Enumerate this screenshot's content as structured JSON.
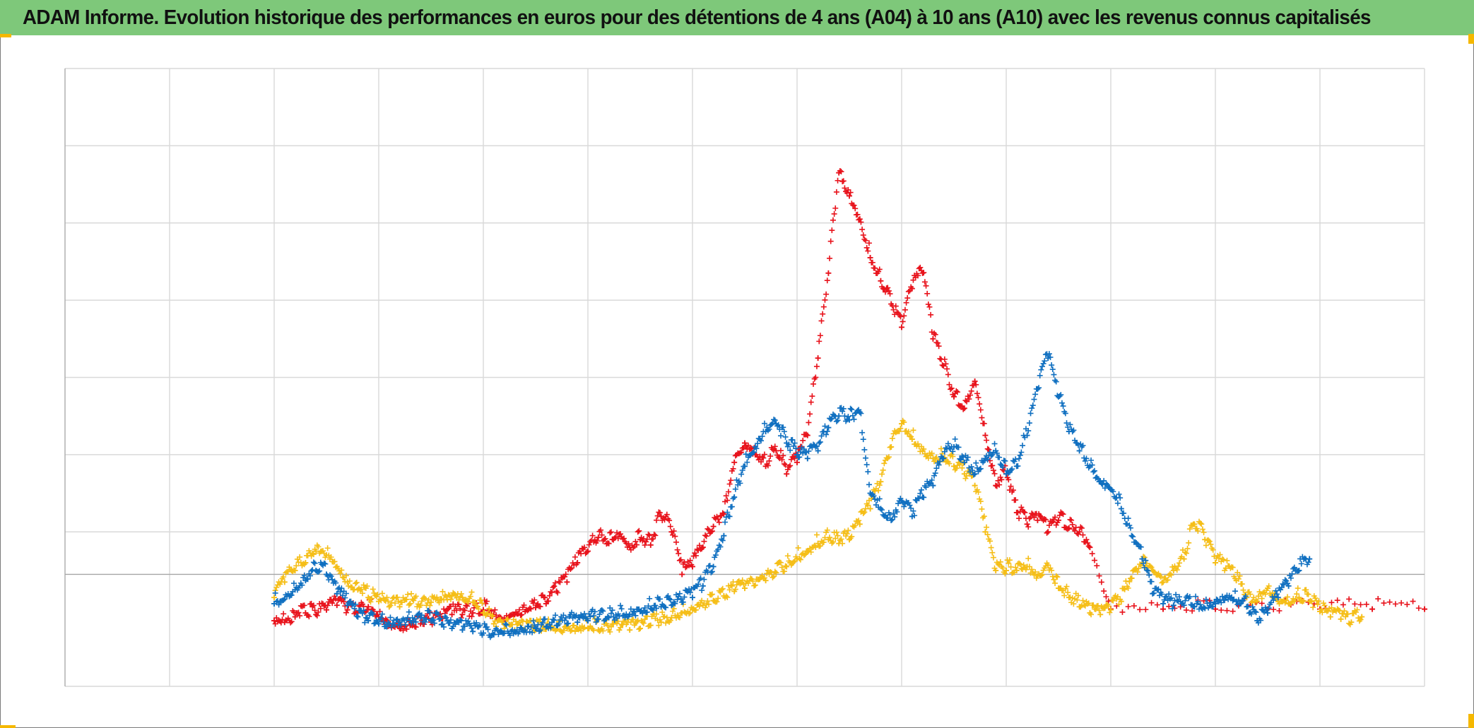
{
  "title": "ADAM Informe. Evolution historique des performances en euros pour des détentions de 4 ans (A04) à 10 ans (A10) avec les revenus connus capitalisés",
  "colors": {
    "title_bar": "#7ec87a",
    "grid": "#d9d9d9",
    "axis": "#a6a6a6",
    "corner_marks": "#f5b800"
  },
  "chart_data": {
    "type": "scatter",
    "marker": "plus",
    "title": "ADAM Informe. Evolution historique des performances en euros pour des détentions de 4 ans (A04) à 10 ans (A10) avec les revenus connus capitalisés",
    "xlabel": "",
    "ylabel": "",
    "x_tick_labels_visible": false,
    "y_tick_labels_visible": false,
    "grid": true,
    "legend": "none",
    "xlim": [
      0,
      13
    ],
    "ylim": [
      -1.45,
      6.55
    ],
    "reference_line_y": 0,
    "y_gridlines": [
      6.55,
      5.55,
      4.55,
      3.55,
      2.55,
      1.55,
      0.55
    ],
    "series": [
      {
        "color": "#e8121b",
        "points": [
          [
            2.0,
            -0.6
          ],
          [
            2.1,
            -0.62
          ],
          [
            2.2,
            -0.55
          ],
          [
            2.3,
            -0.5
          ],
          [
            2.4,
            -0.52
          ],
          [
            2.5,
            -0.46
          ],
          [
            2.6,
            -0.4
          ],
          [
            2.7,
            -0.46
          ],
          [
            2.8,
            -0.5
          ],
          [
            2.9,
            -0.42
          ],
          [
            3.0,
            -0.55
          ],
          [
            3.1,
            -0.65
          ],
          [
            3.2,
            -0.7
          ],
          [
            3.3,
            -0.66
          ],
          [
            3.4,
            -0.64
          ],
          [
            3.5,
            -0.62
          ],
          [
            3.6,
            -0.57
          ],
          [
            3.7,
            -0.52
          ],
          [
            3.8,
            -0.52
          ],
          [
            3.9,
            -0.5
          ],
          [
            4.0,
            -0.46
          ],
          [
            4.1,
            -0.52
          ],
          [
            4.2,
            -0.58
          ],
          [
            4.3,
            -0.52
          ],
          [
            4.4,
            -0.48
          ],
          [
            4.5,
            -0.43
          ],
          [
            4.6,
            -0.38
          ],
          [
            4.7,
            -0.22
          ],
          [
            4.8,
            -0.1
          ],
          [
            4.9,
            0.15
          ],
          [
            5.0,
            0.3
          ],
          [
            5.1,
            0.48
          ],
          [
            5.2,
            0.4
          ],
          [
            5.3,
            0.52
          ],
          [
            5.4,
            0.35
          ],
          [
            5.5,
            0.45
          ],
          [
            5.6,
            0.38
          ],
          [
            5.7,
            0.75
          ],
          [
            5.8,
            0.55
          ],
          [
            5.9,
            0.0
          ],
          [
            6.0,
            0.1
          ],
          [
            6.1,
            0.35
          ],
          [
            6.2,
            0.62
          ],
          [
            6.3,
            0.78
          ],
          [
            6.4,
            1.45
          ],
          [
            6.5,
            1.7
          ],
          [
            6.6,
            1.55
          ],
          [
            6.7,
            1.4
          ],
          [
            6.8,
            1.6
          ],
          [
            6.9,
            1.3
          ],
          [
            7.0,
            1.45
          ],
          [
            7.1,
            1.8
          ],
          [
            7.2,
            2.8
          ],
          [
            7.3,
            3.9
          ],
          [
            7.4,
            5.2
          ],
          [
            7.5,
            4.9
          ],
          [
            7.6,
            4.6
          ],
          [
            7.7,
            4.1
          ],
          [
            7.8,
            3.8
          ],
          [
            7.9,
            3.5
          ],
          [
            8.0,
            3.2
          ],
          [
            8.1,
            3.7
          ],
          [
            8.2,
            3.9
          ],
          [
            8.3,
            3.05
          ],
          [
            8.4,
            2.7
          ],
          [
            8.5,
            2.3
          ],
          [
            8.6,
            2.15
          ],
          [
            8.7,
            2.5
          ],
          [
            8.8,
            1.8
          ],
          [
            8.9,
            1.15
          ],
          [
            9.0,
            1.3
          ],
          [
            9.1,
            0.8
          ],
          [
            9.2,
            0.65
          ],
          [
            9.3,
            0.7
          ],
          [
            9.4,
            0.55
          ],
          [
            9.5,
            0.7
          ],
          [
            9.6,
            0.6
          ],
          [
            9.7,
            0.55
          ],
          [
            9.8,
            0.35
          ],
          [
            10.0,
            -0.45
          ],
          [
            10.5,
            -0.45
          ],
          [
            11.0,
            -0.45
          ],
          [
            11.5,
            -0.45
          ],
          [
            12.0,
            -0.45
          ],
          [
            12.5,
            -0.45
          ],
          [
            13.0,
            -0.45
          ]
        ]
      },
      {
        "color": "#f5be17",
        "points": [
          [
            2.0,
            -0.3
          ],
          [
            2.1,
            -0.1
          ],
          [
            2.2,
            0.05
          ],
          [
            2.3,
            0.15
          ],
          [
            2.4,
            0.3
          ],
          [
            2.5,
            0.25
          ],
          [
            2.6,
            0.1
          ],
          [
            2.7,
            -0.1
          ],
          [
            2.8,
            -0.2
          ],
          [
            2.9,
            -0.3
          ],
          [
            3.0,
            -0.35
          ],
          [
            3.1,
            -0.42
          ],
          [
            3.2,
            -0.42
          ],
          [
            3.3,
            -0.38
          ],
          [
            3.4,
            -0.4
          ],
          [
            3.5,
            -0.36
          ],
          [
            3.6,
            -0.32
          ],
          [
            3.7,
            -0.28
          ],
          [
            3.8,
            -0.3
          ],
          [
            3.9,
            -0.36
          ],
          [
            4.0,
            -0.5
          ],
          [
            4.1,
            -0.64
          ],
          [
            4.2,
            -0.7
          ],
          [
            4.3,
            -0.72
          ],
          [
            4.4,
            -0.72
          ],
          [
            4.5,
            -0.72
          ],
          [
            4.6,
            -0.71
          ],
          [
            4.7,
            -0.71
          ],
          [
            4.8,
            -0.7
          ],
          [
            4.9,
            -0.7
          ],
          [
            5.0,
            -0.7
          ],
          [
            5.1,
            -0.72
          ],
          [
            5.2,
            -0.72
          ],
          [
            5.3,
            -0.72
          ],
          [
            5.4,
            -0.72
          ],
          [
            5.5,
            -0.7
          ],
          [
            5.6,
            -0.66
          ],
          [
            5.7,
            -0.62
          ],
          [
            5.8,
            -0.56
          ],
          [
            5.9,
            -0.5
          ],
          [
            6.0,
            -0.45
          ],
          [
            6.1,
            -0.4
          ],
          [
            6.2,
            -0.34
          ],
          [
            6.3,
            -0.28
          ],
          [
            6.4,
            -0.22
          ],
          [
            6.5,
            -0.18
          ],
          [
            6.6,
            -0.14
          ],
          [
            6.7,
            -0.08
          ],
          [
            6.8,
            0.02
          ],
          [
            6.9,
            0.1
          ],
          [
            7.0,
            0.2
          ],
          [
            7.1,
            0.3
          ],
          [
            7.2,
            0.4
          ],
          [
            7.3,
            0.45
          ],
          [
            7.4,
            0.4
          ],
          [
            7.5,
            0.45
          ],
          [
            7.6,
            0.65
          ],
          [
            7.7,
            0.85
          ],
          [
            7.8,
            1.2
          ],
          [
            7.9,
            1.65
          ],
          [
            8.0,
            1.95
          ],
          [
            8.1,
            1.75
          ],
          [
            8.2,
            1.6
          ],
          [
            8.3,
            1.5
          ],
          [
            8.4,
            1.5
          ],
          [
            8.5,
            1.4
          ],
          [
            8.6,
            1.3
          ],
          [
            8.7,
            1.15
          ],
          [
            8.8,
            0.55
          ],
          [
            8.9,
            0.05
          ],
          [
            9.0,
            0.05
          ],
          [
            9.1,
            0.05
          ],
          [
            9.2,
            0.1
          ],
          [
            9.3,
            -0.02
          ],
          [
            9.4,
            0.12
          ],
          [
            9.5,
            -0.18
          ],
          [
            9.6,
            -0.3
          ],
          [
            9.7,
            -0.42
          ],
          [
            9.8,
            -0.5
          ],
          [
            9.9,
            -0.52
          ],
          [
            10.0,
            -0.46
          ],
          [
            10.1,
            -0.35
          ],
          [
            10.2,
            -0.05
          ],
          [
            10.3,
            0.15
          ],
          [
            10.4,
            0.05
          ],
          [
            10.5,
            -0.1
          ],
          [
            10.6,
            0.05
          ],
          [
            10.7,
            0.2
          ],
          [
            10.8,
            0.65
          ],
          [
            10.9,
            0.45
          ],
          [
            11.0,
            0.15
          ],
          [
            11.1,
            0.08
          ],
          [
            11.2,
            -0.08
          ],
          [
            11.3,
            -0.3
          ],
          [
            11.4,
            -0.35
          ],
          [
            11.5,
            -0.18
          ],
          [
            11.6,
            -0.35
          ],
          [
            11.7,
            -0.38
          ],
          [
            11.8,
            -0.3
          ],
          [
            11.9,
            -0.35
          ],
          [
            12.0,
            -0.48
          ],
          [
            12.1,
            -0.55
          ],
          [
            12.2,
            -0.58
          ],
          [
            12.3,
            -0.62
          ],
          [
            12.4,
            -0.55
          ]
        ]
      },
      {
        "color": "#0f6fc0",
        "points": [
          [
            2.0,
            -0.38
          ],
          [
            2.1,
            -0.32
          ],
          [
            2.2,
            -0.2
          ],
          [
            2.3,
            -0.08
          ],
          [
            2.4,
            0.05
          ],
          [
            2.5,
            0.0
          ],
          [
            2.6,
            -0.25
          ],
          [
            2.7,
            -0.4
          ],
          [
            2.8,
            -0.55
          ],
          [
            2.9,
            -0.6
          ],
          [
            3.0,
            -0.64
          ],
          [
            3.1,
            -0.64
          ],
          [
            3.2,
            -0.62
          ],
          [
            3.3,
            -0.6
          ],
          [
            3.4,
            -0.56
          ],
          [
            3.5,
            -0.6
          ],
          [
            3.6,
            -0.65
          ],
          [
            3.7,
            -0.7
          ],
          [
            3.8,
            -0.72
          ],
          [
            3.9,
            -0.74
          ],
          [
            4.0,
            -0.76
          ],
          [
            4.1,
            -0.78
          ],
          [
            4.2,
            -0.76
          ],
          [
            4.3,
            -0.74
          ],
          [
            4.4,
            -0.72
          ],
          [
            4.5,
            -0.7
          ],
          [
            4.6,
            -0.68
          ],
          [
            4.7,
            -0.66
          ],
          [
            4.8,
            -0.64
          ],
          [
            4.9,
            -0.62
          ],
          [
            5.0,
            -0.6
          ],
          [
            5.1,
            -0.58
          ],
          [
            5.2,
            -0.56
          ],
          [
            5.3,
            -0.54
          ],
          [
            5.4,
            -0.52
          ],
          [
            5.5,
            -0.48
          ],
          [
            5.6,
            -0.44
          ],
          [
            5.7,
            -0.42
          ],
          [
            5.8,
            -0.4
          ],
          [
            5.9,
            -0.36
          ],
          [
            6.0,
            -0.3
          ],
          [
            6.1,
            -0.15
          ],
          [
            6.2,
            0.1
          ],
          [
            6.3,
            0.5
          ],
          [
            6.4,
            1.0
          ],
          [
            6.5,
            1.4
          ],
          [
            6.6,
            1.65
          ],
          [
            6.7,
            1.85
          ],
          [
            6.8,
            1.95
          ],
          [
            6.9,
            1.7
          ],
          [
            7.0,
            1.55
          ],
          [
            7.1,
            1.5
          ],
          [
            7.2,
            1.6
          ],
          [
            7.3,
            1.9
          ],
          [
            7.4,
            2.05
          ],
          [
            7.5,
            2.0
          ],
          [
            7.6,
            2.1
          ],
          [
            7.7,
            1.05
          ],
          [
            7.8,
            0.85
          ],
          [
            7.9,
            0.7
          ],
          [
            8.0,
            0.95
          ],
          [
            8.1,
            0.75
          ],
          [
            8.2,
            1.0
          ],
          [
            8.3,
            1.15
          ],
          [
            8.4,
            1.5
          ],
          [
            8.5,
            1.65
          ],
          [
            8.6,
            1.45
          ],
          [
            8.7,
            1.3
          ],
          [
            8.8,
            1.5
          ],
          [
            8.9,
            1.6
          ],
          [
            9.0,
            1.3
          ],
          [
            9.1,
            1.4
          ],
          [
            9.2,
            1.8
          ],
          [
            9.3,
            2.4
          ],
          [
            9.4,
            2.8
          ],
          [
            9.5,
            2.3
          ],
          [
            9.6,
            1.85
          ],
          [
            9.7,
            1.6
          ],
          [
            9.8,
            1.4
          ],
          [
            9.9,
            1.2
          ],
          [
            10.0,
            1.1
          ],
          [
            10.1,
            0.85
          ],
          [
            10.2,
            0.5
          ],
          [
            10.3,
            0.2
          ],
          [
            10.4,
            -0.25
          ],
          [
            10.5,
            -0.38
          ],
          [
            10.6,
            -0.4
          ],
          [
            10.7,
            -0.4
          ],
          [
            10.8,
            -0.42
          ],
          [
            10.9,
            -0.44
          ],
          [
            11.0,
            -0.38
          ],
          [
            11.1,
            -0.3
          ],
          [
            11.2,
            -0.35
          ],
          [
            11.3,
            -0.42
          ],
          [
            11.4,
            -0.6
          ],
          [
            11.5,
            -0.5
          ],
          [
            11.6,
            -0.3
          ],
          [
            11.7,
            -0.15
          ],
          [
            11.8,
            0.05
          ],
          [
            11.9,
            0.2
          ]
        ]
      }
    ]
  }
}
